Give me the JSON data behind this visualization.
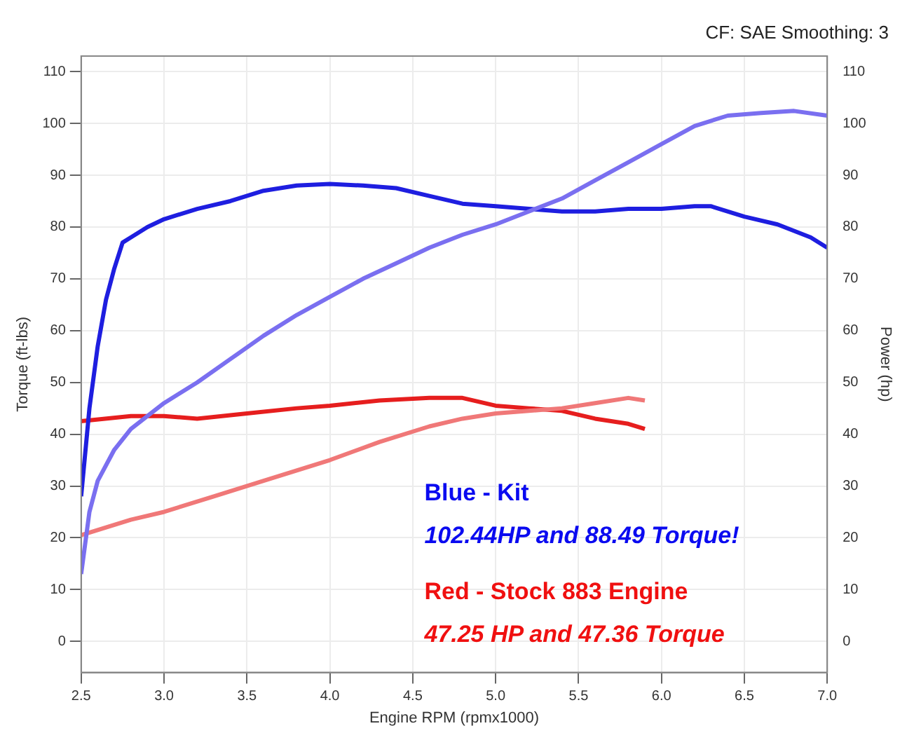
{
  "chart_data": {
    "type": "line",
    "xlabel": "Engine RPM (rpmx1000)",
    "ylabel": "Torque (ft-lbs)",
    "y2label": "Power (hp)",
    "annotations": [
      "CF: SAE Smoothing: 3",
      "Blue - Kit",
      "102.44HP and 88.49 Torque!",
      "Red - Stock 883 Engine",
      "47.25 HP and 47.36 Torque"
    ],
    "xlim": [
      2.5,
      7.0
    ],
    "xticks": [
      2.5,
      {
        "value": 3,
        "label": "3.0"
      },
      3.5,
      {
        "value": 4,
        "label": "4.0"
      },
      4.5,
      {
        "value": 5,
        "label": "5.0"
      },
      5.5,
      {
        "value": 6,
        "label": "6.0"
      },
      6.5,
      {
        "value": 7,
        "label": "7.0"
      }
    ],
    "ylim": [
      -6,
      113
    ],
    "yticks": [
      0,
      10,
      20,
      30,
      40,
      50,
      60,
      70,
      80,
      90,
      100,
      110
    ],
    "y2lim": [
      -6,
      113
    ],
    "y2ticks": [
      0,
      10,
      20,
      30,
      40,
      50,
      60,
      70,
      80,
      90,
      100,
      110
    ],
    "grid": true,
    "marker": "none",
    "line_style": "solid",
    "series": [
      {
        "color": "#1e1ee0",
        "x": [
          2.5,
          2.55,
          2.6,
          2.65,
          2.7,
          2.75,
          2.8,
          2.9,
          3.0,
          3.2,
          3.4,
          3.6,
          3.8,
          4.0,
          4.2,
          4.4,
          4.6,
          4.8,
          5.0,
          5.2,
          5.4,
          5.6,
          5.8,
          6.0,
          6.2,
          6.3,
          6.5,
          6.7,
          6.9,
          7.0
        ],
        "values": [
          28,
          45,
          57,
          66,
          72,
          77,
          78,
          80,
          81.5,
          83.5,
          85,
          87,
          88,
          88.3,
          88,
          87.5,
          86,
          84.5,
          84,
          83.5,
          83,
          83,
          83.5,
          83.5,
          84,
          84,
          82,
          80.5,
          78,
          76
        ]
      },
      {
        "color": "#7a6ff0",
        "axis": "y2",
        "x": [
          2.5,
          2.55,
          2.6,
          2.7,
          2.8,
          2.9,
          3.0,
          3.2,
          3.4,
          3.6,
          3.8,
          4.0,
          4.2,
          4.4,
          4.6,
          4.8,
          5.0,
          5.2,
          5.4,
          5.6,
          5.8,
          6.0,
          6.2,
          6.4,
          6.6,
          6.8,
          7.0
        ],
        "values": [
          13,
          25,
          31,
          37,
          41,
          43.5,
          46,
          50,
          54.5,
          59,
          63,
          66.5,
          70,
          73,
          76,
          78.5,
          80.5,
          83,
          85.5,
          89,
          92.5,
          96,
          99.5,
          101.5,
          102,
          102.4,
          101.5
        ]
      },
      {
        "color": "#e61e1e",
        "x": [
          2.5,
          2.8,
          3.0,
          3.2,
          3.5,
          3.8,
          4.0,
          4.3,
          4.6,
          4.8,
          5.0,
          5.2,
          5.4,
          5.6,
          5.8,
          5.9
        ],
        "values": [
          42.5,
          43.5,
          43.5,
          43,
          44,
          45,
          45.5,
          46.5,
          47,
          47,
          45.5,
          45,
          44.5,
          43,
          42,
          41
        ]
      },
      {
        "color": "#f07878",
        "axis": "y2",
        "x": [
          2.5,
          2.8,
          3.0,
          3.3,
          3.6,
          4.0,
          4.3,
          4.6,
          4.8,
          5.0,
          5.2,
          5.4,
          5.6,
          5.8,
          5.9
        ],
        "values": [
          20.5,
          23.5,
          25,
          28,
          31,
          35,
          38.5,
          41.5,
          43,
          44,
          44.5,
          45,
          46,
          47,
          46.5
        ]
      }
    ]
  }
}
